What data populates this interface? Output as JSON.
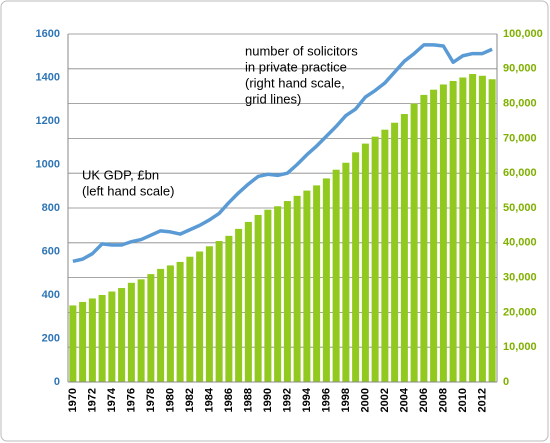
{
  "chart_data": {
    "type": "bar-line",
    "categories": [
      "1970",
      null,
      "1972",
      null,
      "1974",
      null,
      "1976",
      null,
      "1978",
      null,
      "1980",
      null,
      "1982",
      null,
      "1984",
      null,
      "1986",
      null,
      "1988",
      null,
      "1990",
      null,
      "1992",
      null,
      "1994",
      null,
      "1996",
      null,
      "1998",
      null,
      "2000",
      null,
      "2002",
      null,
      "2004",
      null,
      "2006",
      null,
      "2008",
      null,
      "2010",
      null,
      "2012",
      null
    ],
    "series": [
      {
        "type": "bar",
        "axis": "y2",
        "color": "#92c91f",
        "values": [
          22000,
          23000,
          24000,
          25000,
          26000,
          27000,
          28500,
          29500,
          31000,
          32500,
          33500,
          34500,
          36000,
          37500,
          39000,
          40500,
          42000,
          44000,
          46000,
          48000,
          49500,
          50500,
          52000,
          53500,
          55000,
          56500,
          58500,
          61000,
          63000,
          66000,
          68500,
          70500,
          72500,
          74500,
          77000,
          80000,
          82500,
          84000,
          85500,
          86500,
          87500,
          88500,
          88000,
          87000
        ]
      },
      {
        "type": "line",
        "axis": "y",
        "color": "#5b9bd5",
        "values": [
          555,
          565,
          590,
          635,
          630,
          630,
          645,
          655,
          675,
          695,
          690,
          680,
          700,
          720,
          745,
          775,
          825,
          870,
          910,
          945,
          955,
          950,
          960,
          1000,
          1045,
          1085,
          1130,
          1175,
          1225,
          1255,
          1310,
          1340,
          1375,
          1425,
          1475,
          1510,
          1550,
          1550,
          1545,
          1470,
          1500,
          1510,
          1510,
          1530
        ]
      }
    ],
    "ylim": [
      0,
      1600
    ],
    "yticks": [
      0,
      200,
      400,
      600,
      800,
      1000,
      1200,
      1400,
      1600
    ],
    "y2lim": [
      0,
      100000
    ],
    "y2ticks": [
      0,
      {
        "value": 10000,
        "label": "10,000"
      },
      {
        "value": 20000,
        "label": "20,000"
      },
      {
        "value": 30000,
        "label": "30,000"
      },
      {
        "value": 40000,
        "label": "40,000"
      },
      {
        "value": 50000,
        "label": "50,000"
      },
      {
        "value": 60000,
        "label": "60,000"
      },
      {
        "value": 70000,
        "label": "70,000"
      },
      {
        "value": 80000,
        "label": "80,000"
      },
      {
        "value": 90000,
        "label": "90,000"
      },
      {
        "value": 100000,
        "label": "100,000"
      }
    ],
    "grid": "y2",
    "annotations": [
      [
        "number of solicitors",
        "in private practice",
        "(right hand scale,",
        "grid lines)"
      ],
      [
        "UK GDP, £bn",
        "(left hand scale)"
      ]
    ]
  }
}
